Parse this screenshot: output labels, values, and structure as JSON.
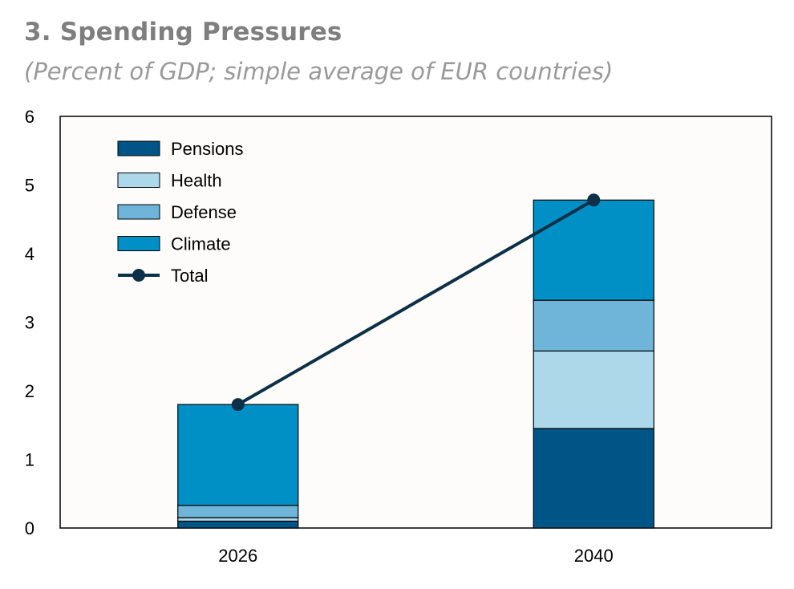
{
  "title": "3. Spending Pressures",
  "subtitle": "(Percent of GDP; simple average of EUR countries)",
  "colors": {
    "pensions": "#005587",
    "health": "#acd8ea",
    "defense": "#6fb5d9",
    "climate": "#0090c6",
    "total": "#0b3048",
    "plot_bg": "#fdfcfa"
  },
  "chart_data": {
    "type": "bar",
    "stacked": true,
    "categories": [
      "2026",
      "2040"
    ],
    "series": [
      {
        "name": "Pensions",
        "values": [
          0.1,
          1.45
        ],
        "color_key": "pensions"
      },
      {
        "name": "Health",
        "values": [
          0.05,
          1.13
        ],
        "color_key": "health"
      },
      {
        "name": "Defense",
        "values": [
          0.18,
          0.74
        ],
        "color_key": "defense"
      },
      {
        "name": "Climate",
        "values": [
          1.47,
          1.46
        ],
        "color_key": "climate"
      }
    ],
    "line": {
      "name": "Total",
      "values": [
        1.8,
        4.78
      ],
      "color_key": "total"
    },
    "ylim": [
      0,
      6
    ],
    "yticks": [
      "0",
      "1",
      "2",
      "3",
      "4",
      "5",
      "6"
    ],
    "grid": false,
    "legend_position": "top-left"
  }
}
